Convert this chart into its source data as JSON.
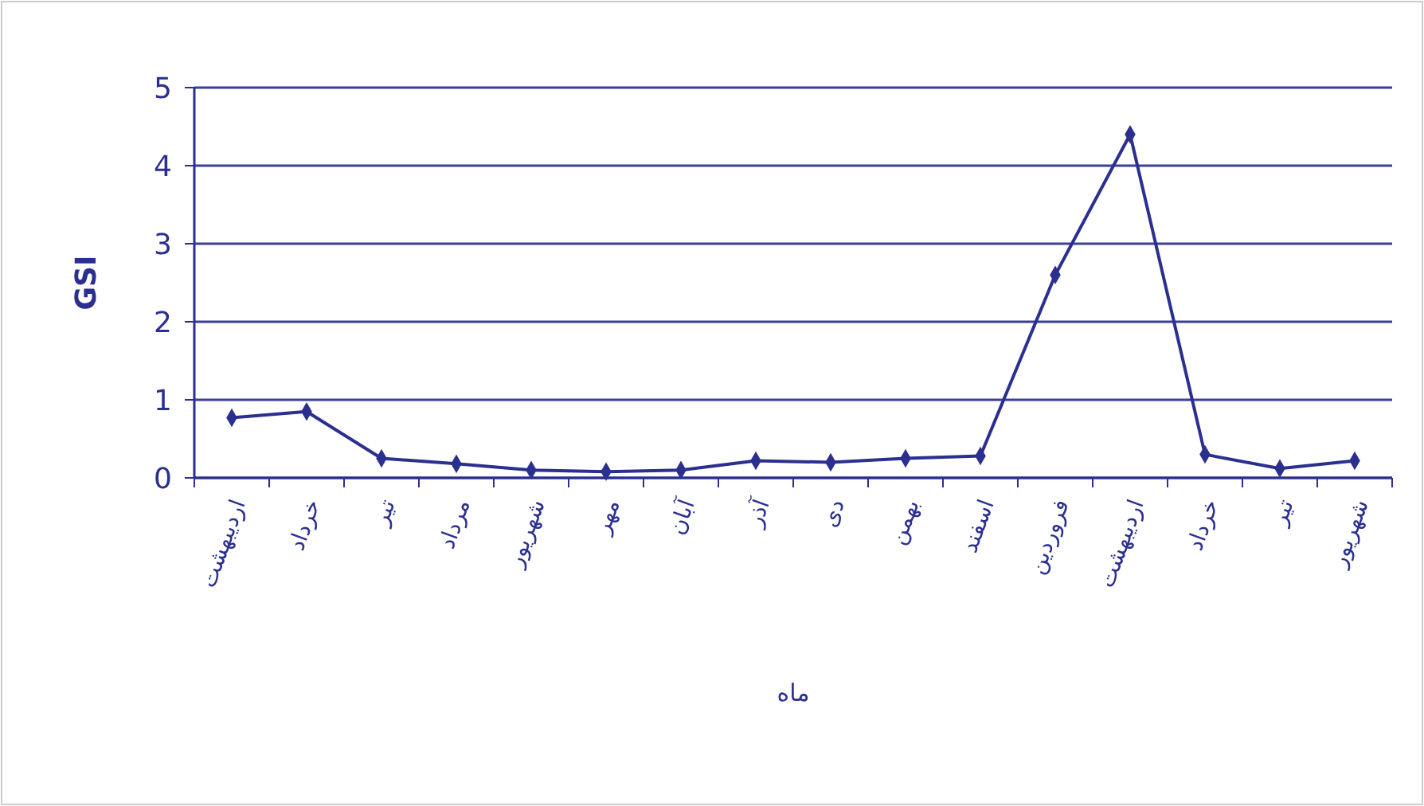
{
  "chart_data": {
    "type": "line",
    "ylabel": "GSI",
    "xlabel": "ماه",
    "categories": [
      "اردیبهشت",
      "خرداد",
      "تیر",
      "مرداد",
      "شهریور",
      "مهر",
      "آبان",
      "آذر",
      "دی",
      "بهمن",
      "اسفند",
      "فروردین",
      "اردیبهشت",
      "خرداد",
      "تیر",
      "شهریور"
    ],
    "series": [
      {
        "color": "#2b2f8f",
        "values": [
          0.77,
          0.85,
          0.25,
          0.18,
          0.1,
          0.08,
          0.1,
          0.22,
          0.2,
          0.25,
          0.28,
          2.6,
          4.4,
          0.3,
          0.12,
          0.22
        ]
      }
    ],
    "ylim": [
      0,
      5
    ],
    "yticks": [
      0,
      1,
      2,
      3,
      4,
      5
    ],
    "grid": "y",
    "marker": "diamond",
    "line_style": "solid"
  }
}
